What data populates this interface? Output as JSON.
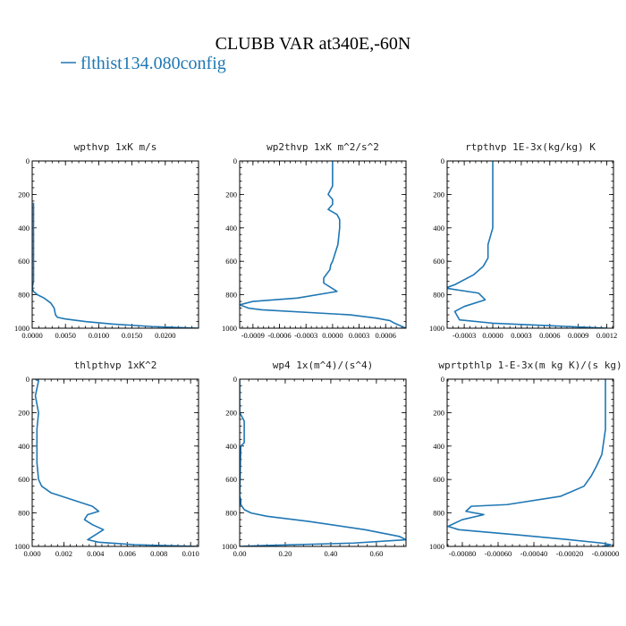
{
  "figure": {
    "title": "CLUBB VAR at340E,-60N",
    "legend": [
      {
        "label": "flthist134.080config",
        "color": "#1f77b4"
      }
    ]
  },
  "chart_data": [
    {
      "type": "line",
      "title": "wpthvp   1xK m/s",
      "xlim": [
        0,
        0.025
      ],
      "ylim": [
        1000,
        0
      ],
      "xticks": [
        0,
        0.005,
        0.01,
        0.015,
        0.02
      ],
      "xtick_labels": [
        "0.0000",
        "0.0050",
        "0.0100",
        "0.0150",
        "0.0200"
      ],
      "yticks": [
        0,
        200,
        400,
        600,
        800,
        1000
      ],
      "ytick_labels": [
        "0",
        "200",
        "400",
        "600",
        "800",
        "1000"
      ],
      "series": [
        {
          "color": "#1f77b4",
          "x": [
            0.0002,
            0.0002,
            0.0002,
            0.0002,
            0.0002,
            0.0001,
            0,
            0.0002,
            0.0008,
            0.0018,
            0.0028,
            0.0033,
            0.0035,
            0.0038,
            0.005,
            0.008,
            0.012,
            0.018,
            0.025
          ],
          "y": [
            250,
            400,
            600,
            700,
            720,
            740,
            760,
            780,
            800,
            820,
            850,
            880,
            920,
            935,
            945,
            960,
            975,
            990,
            1000
          ]
        }
      ]
    },
    {
      "type": "line",
      "title": "wp2thvp   1xK m^2/s^2",
      "xlim": [
        -0.00105,
        0.00083
      ],
      "ylim": [
        1000,
        0
      ],
      "xticks": [
        -0.0009,
        -0.0006,
        -0.0003,
        0,
        0.0003,
        0.0006
      ],
      "xtick_labels": [
        "-0.0009",
        "-0.0006",
        "-0.0003",
        "0.0000",
        "0.0003",
        "0.0006"
      ],
      "yticks": [
        0,
        200,
        400,
        600,
        800,
        1000
      ],
      "ytick_labels": [
        "0",
        "200",
        "400",
        "600",
        "800",
        "1000"
      ],
      "series": [
        {
          "color": "#1f77b4",
          "x": [
            0,
            0,
            -5e-05,
            0,
            0,
            -5e-05,
            5e-05,
            8e-05,
            8e-05,
            7e-05,
            6e-05,
            0,
            -2e-05,
            -3e-05,
            -0.0001,
            -0.0001,
            5e-05,
            -0.0004,
            -0.0009,
            -0.00105,
            -0.00095,
            -0.0008,
            0.0002,
            0.0005,
            0.00065,
            0.0007,
            0.00083
          ],
          "y": [
            0,
            150,
            200,
            230,
            260,
            290,
            320,
            350,
            400,
            450,
            500,
            600,
            620,
            650,
            700,
            730,
            780,
            820,
            840,
            860,
            880,
            890,
            920,
            940,
            955,
            970,
            1000
          ]
        }
      ]
    },
    {
      "type": "line",
      "title": "rtpthvp   1E-3x(kg/kg) K",
      "xlim": [
        -0.00048,
        0.00127
      ],
      "ylim": [
        1000,
        0
      ],
      "xticks": [
        -0.0003,
        0,
        0.0003,
        0.0006,
        0.0009,
        0.0012
      ],
      "xtick_labels": [
        "-0.0003",
        "0.0000",
        "0.0003",
        "0.0006",
        "0.0009",
        "0.0012"
      ],
      "yticks": [
        0,
        200,
        400,
        600,
        800,
        1000
      ],
      "ytick_labels": [
        "0",
        "200",
        "400",
        "600",
        "800",
        "1000"
      ],
      "series": [
        {
          "color": "#1f77b4",
          "x": [
            0,
            0,
            0,
            -5e-05,
            -5e-05,
            -0.0001,
            -0.0002,
            -0.0004,
            -0.0005,
            -0.00015,
            -8e-05,
            -0.0003,
            -0.0004,
            -0.00035,
            0,
            0.0006,
            0.0012
          ],
          "y": [
            0,
            200,
            400,
            500,
            580,
            630,
            680,
            740,
            760,
            790,
            830,
            870,
            900,
            950,
            970,
            985,
            1000
          ]
        }
      ]
    },
    {
      "type": "line",
      "title": "thlpthvp   1xK^2",
      "xlim": [
        0,
        0.0105
      ],
      "ylim": [
        1000,
        0
      ],
      "xticks": [
        0,
        0.002,
        0.004,
        0.006,
        0.008,
        0.01
      ],
      "xtick_labels": [
        "0.000",
        "0.002",
        "0.004",
        "0.006",
        "0.008",
        "0.010"
      ],
      "yticks": [
        0,
        200,
        400,
        600,
        800,
        1000
      ],
      "ytick_labels": [
        "0",
        "200",
        "400",
        "600",
        "800",
        "1000"
      ],
      "series": [
        {
          "color": "#1f77b4",
          "x": [
            0.0002,
            0.0004,
            0.0002,
            0.0004,
            0.0003,
            0.0003,
            0.0004,
            0.0006,
            0.0012,
            0.0025,
            0.0038,
            0.0042,
            0.0035,
            0.0033,
            0.0038,
            0.0045,
            0.004,
            0.0035,
            0.0042,
            0.0065,
            0.0105
          ],
          "y": [
            0,
            10,
            100,
            200,
            300,
            500,
            600,
            640,
            680,
            720,
            760,
            790,
            810,
            840,
            870,
            900,
            930,
            960,
            975,
            990,
            1000
          ]
        }
      ]
    },
    {
      "type": "line",
      "title": "wp4   1x(m^4)/(s^4)",
      "xlim": [
        0,
        0.73
      ],
      "ylim": [
        1000,
        0
      ],
      "xticks": [
        0,
        0.2,
        0.4,
        0.6
      ],
      "xtick_labels": [
        "0.00",
        "0.20",
        "0.40",
        "0.60"
      ],
      "yticks": [
        0,
        200,
        400,
        600,
        800,
        1000
      ],
      "ytick_labels": [
        "0",
        "200",
        "400",
        "600",
        "800",
        "1000"
      ],
      "series": [
        {
          "color": "#1f77b4",
          "x": [
            0,
            0,
            0.02,
            0.02,
            0.005,
            0,
            0.005,
            0.005,
            0.02,
            0.05,
            0.12,
            0.3,
            0.55,
            0.7,
            0.73,
            0.5,
            0.1,
            0
          ],
          "y": [
            0,
            200,
            250,
            380,
            400,
            700,
            720,
            750,
            780,
            800,
            820,
            850,
            900,
            940,
            960,
            980,
            995,
            1000
          ]
        }
      ]
    },
    {
      "type": "line",
      "title": "wprtpthlp   1-E-3x(m kg K)/(s kg)",
      "xlim": [
        -0.000885,
        4.5e-05
      ],
      "ylim": [
        1000,
        0
      ],
      "xticks": [
        -0.0008,
        -0.0006,
        -0.0004,
        -0.0002,
        0
      ],
      "xtick_labels": [
        "-0.00080",
        "-0.00060",
        "-0.00040",
        "-0.00020",
        "-0.00000"
      ],
      "yticks": [
        0,
        200,
        400,
        600,
        800,
        1000
      ],
      "ytick_labels": [
        "0",
        "200",
        "400",
        "600",
        "800",
        "1000"
      ],
      "series": [
        {
          "color": "#1f77b4",
          "x": [
            0,
            0,
            0,
            -2e-05,
            -5e-05,
            -8e-05,
            -0.00012,
            -0.00025,
            -0.00055,
            -0.00075,
            -0.00078,
            -0.00068,
            -0.0008,
            -0.00088,
            -0.00082,
            -0.0005,
            -0.0002,
            -2e-05,
            3e-05,
            -2e-05
          ],
          "y": [
            0,
            150,
            300,
            450,
            520,
            580,
            640,
            700,
            750,
            760,
            790,
            810,
            840,
            880,
            900,
            930,
            960,
            980,
            990,
            1000
          ]
        }
      ]
    }
  ]
}
